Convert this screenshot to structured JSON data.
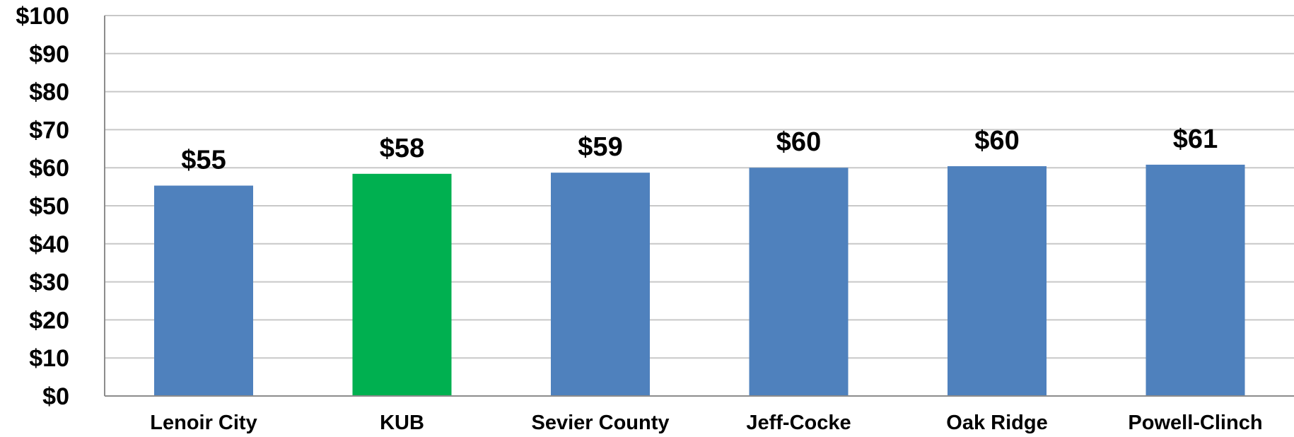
{
  "chart_data": {
    "type": "bar",
    "title": "",
    "xlabel": "",
    "ylabel": "",
    "categories": [
      "Lenoir City",
      "KUB",
      "Sevier County",
      "Jeff-Cocke",
      "Oak Ridge",
      "Powell-Clinch"
    ],
    "values": [
      55.3,
      58.4,
      58.7,
      60.0,
      60.4,
      60.8
    ],
    "data_labels": [
      "$55",
      "$58",
      "$59",
      "$60",
      "$60",
      "$61"
    ],
    "ylim": [
      0,
      100
    ],
    "yticks": [
      0,
      10,
      20,
      30,
      40,
      50,
      60,
      70,
      80,
      90,
      100
    ],
    "ytick_labels": [
      "$0",
      "$10",
      "$20",
      "$30",
      "$40",
      "$50",
      "$60",
      "$70",
      "$80",
      "$90",
      "$100"
    ],
    "grid": true,
    "legend": "none",
    "colors": {
      "default_bar": "#4f81bd",
      "highlight_bar": "#00b050",
      "highlight_category": "KUB",
      "gridline": "#c8c8c8",
      "axis": "#8c8c8c"
    }
  }
}
